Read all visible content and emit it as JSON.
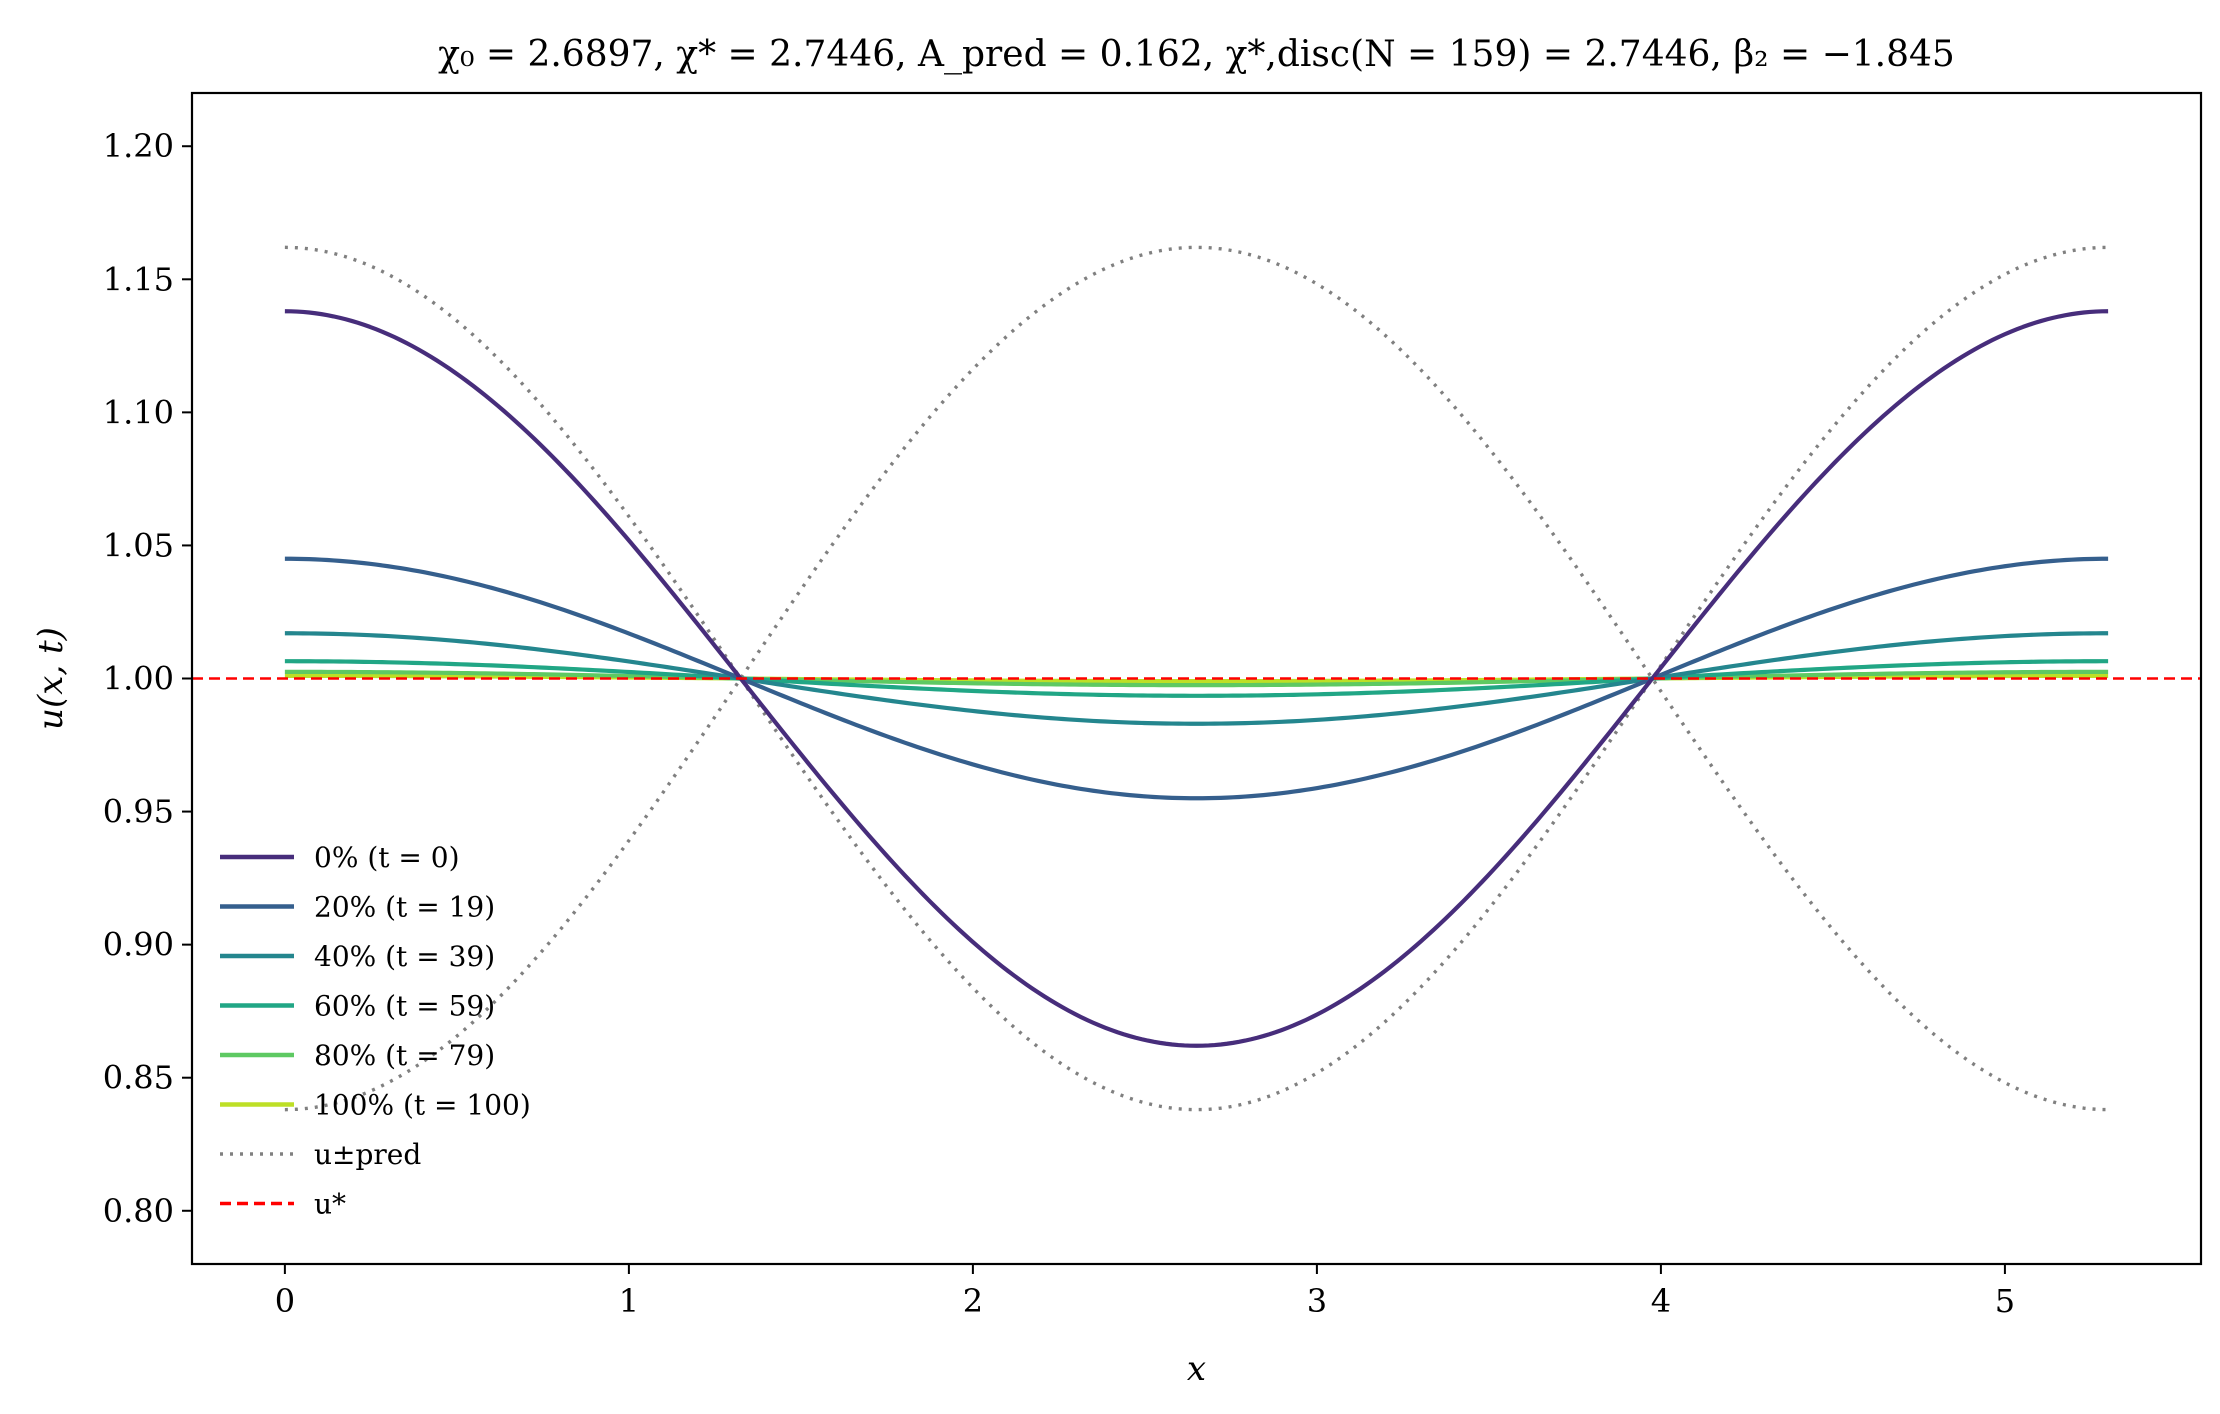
{
  "chart_data": {
    "type": "line",
    "title": "χ₀ = 2.6897, χ* = 2.7446, A_pred = 0.162, χ*,disc(N = 159) = 2.7446, β₂ = −1.845",
    "xlabel": "x",
    "ylabel": "u(x, t)",
    "xlim": [
      -0.27,
      5.57
    ],
    "ylim": [
      0.78,
      1.22
    ],
    "x_ticks": [
      0,
      1,
      2,
      3,
      4,
      5
    ],
    "x_tick_labels": [
      "0",
      "1",
      "2",
      "3",
      "4",
      "5"
    ],
    "y_ticks": [
      0.8,
      0.85,
      0.9,
      0.95,
      1.0,
      1.05,
      1.1,
      1.15,
      1.2
    ],
    "y_tick_labels": [
      "0.80",
      "0.85",
      "0.90",
      "0.95",
      "1.00",
      "1.05",
      "1.10",
      "1.15",
      "1.20"
    ],
    "grid": false,
    "legend_position": "lower-left",
    "domain": {
      "x_min": 0,
      "x_max": 5.3,
      "period": 5.3
    },
    "series": [
      {
        "name": "0% (t = 0)",
        "kind": "cosine",
        "offset": 1.0,
        "amplitude": 0.138,
        "color": "#472d7b",
        "style": "solid"
      },
      {
        "name": "20% (t = 19)",
        "kind": "cosine",
        "offset": 1.0,
        "amplitude": 0.045,
        "color": "#355f8d",
        "style": "solid"
      },
      {
        "name": "40% (t = 39)",
        "kind": "cosine",
        "offset": 1.0,
        "amplitude": 0.017,
        "color": "#24868e",
        "style": "solid"
      },
      {
        "name": "60% (t = 59)",
        "kind": "cosine",
        "offset": 1.0,
        "amplitude": 0.0065,
        "color": "#21a685",
        "style": "solid"
      },
      {
        "name": "80% (t = 79)",
        "kind": "cosine",
        "offset": 1.0,
        "amplitude": 0.0025,
        "color": "#5ec962",
        "style": "solid"
      },
      {
        "name": "100% (t = 100)",
        "kind": "cosine",
        "offset": 1.0,
        "amplitude": 0.001,
        "color": "#bddf26",
        "style": "solid"
      },
      {
        "name": "u±pred",
        "kind": "cosine_pair",
        "offset": 1.0,
        "amplitude": 0.162,
        "color": "#808080",
        "style": "dotted"
      },
      {
        "name": "u*",
        "kind": "constant",
        "value": 1.0,
        "color": "#ff0000",
        "style": "dashed"
      }
    ],
    "legend": [
      {
        "text": "0% (t = 0)",
        "color": "#472d7b",
        "style": "solid"
      },
      {
        "text": "20% (t = 19)",
        "color": "#355f8d",
        "style": "solid"
      },
      {
        "text": "40% (t = 39)",
        "color": "#24868e",
        "style": "solid"
      },
      {
        "text": "60% (t = 59)",
        "color": "#21a685",
        "style": "solid"
      },
      {
        "text": "80% (t = 79)",
        "color": "#5ec962",
        "style": "solid"
      },
      {
        "text": "100% (t = 100)",
        "color": "#bddf26",
        "style": "solid"
      },
      {
        "text": "u±pred",
        "color": "#808080",
        "style": "dotted"
      },
      {
        "text": "u*",
        "color": "#ff0000",
        "style": "dashed"
      }
    ]
  }
}
